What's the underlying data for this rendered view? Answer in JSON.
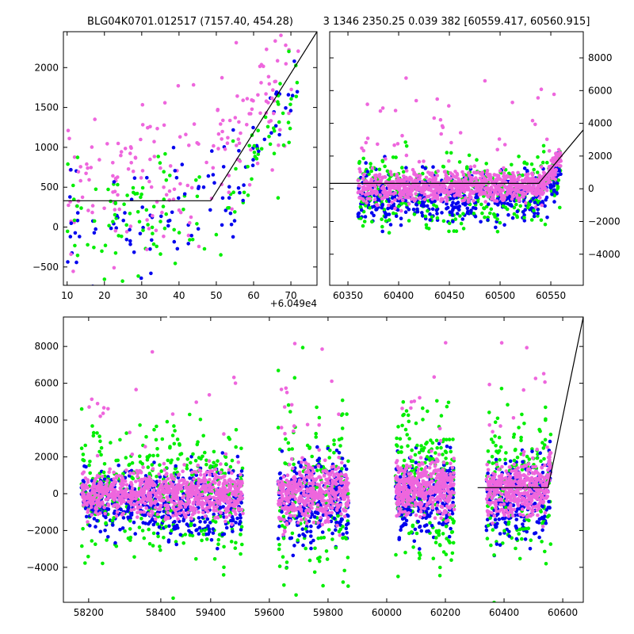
{
  "title_left": "BLG04K0701.012517 (7157.40, 454.28)",
  "title_right": "3 1346 2350.25 0.039 382 [60559.417, 60560.915]",
  "colors": {
    "blue": "#0000ee",
    "green": "#00ee00",
    "pink": "#ee66dd",
    "model": "#000000"
  },
  "chart_data": [
    {
      "name": "top-left-zoom",
      "type": "scatter",
      "offset_label": "+6.049e4",
      "xlim": [
        9,
        77
      ],
      "ylim": [
        -730,
        2450
      ],
      "xticks": [
        10,
        20,
        30,
        40,
        50,
        60,
        70
      ],
      "yticks": [
        -500,
        0,
        500,
        1000,
        1500,
        2000
      ],
      "model_line": [
        [
          9,
          330
        ],
        [
          48.5,
          330
        ],
        [
          77,
          2450
        ]
      ]
    },
    {
      "name": "top-right",
      "type": "scatter",
      "xlim": [
        60332,
        60582
      ],
      "ylim": [
        -5900,
        9600
      ],
      "xticks": [
        60350,
        60400,
        60450,
        60500,
        60550
      ],
      "yticks": [
        -4000,
        -2000,
        0,
        2000,
        4000,
        6000,
        8000
      ],
      "model_line": [
        [
          60332,
          330
        ],
        [
          60538,
          330
        ],
        [
          60582,
          3600
        ]
      ]
    },
    {
      "name": "bottom-full",
      "type": "scatter",
      "xlim": [
        58130,
        60670
      ],
      "ylim": [
        -5900,
        9600
      ],
      "xticks": [
        58200,
        58400,
        59400,
        59600,
        59800,
        60000,
        60200,
        60400,
        60600
      ],
      "yticks": [
        -4000,
        -2000,
        0,
        2000,
        4000,
        6000,
        8000
      ],
      "model_line": [
        [
          60310,
          330
        ],
        [
          60550,
          330
        ],
        [
          60670,
          9600
        ]
      ],
      "seasons": [
        {
          "range": [
            58180,
            58410
          ],
          "center": 0,
          "spread": 550
        },
        {
          "range": [
            59240,
            59510
          ],
          "center": 0,
          "spread": 650
        },
        {
          "range": [
            59630,
            59870
          ],
          "center": 0,
          "spread": 800
        },
        {
          "range": [
            60030,
            60230
          ],
          "center": 300,
          "spread": 700
        },
        {
          "range": [
            60340,
            60560
          ],
          "center": 200,
          "spread": 700
        }
      ]
    }
  ]
}
